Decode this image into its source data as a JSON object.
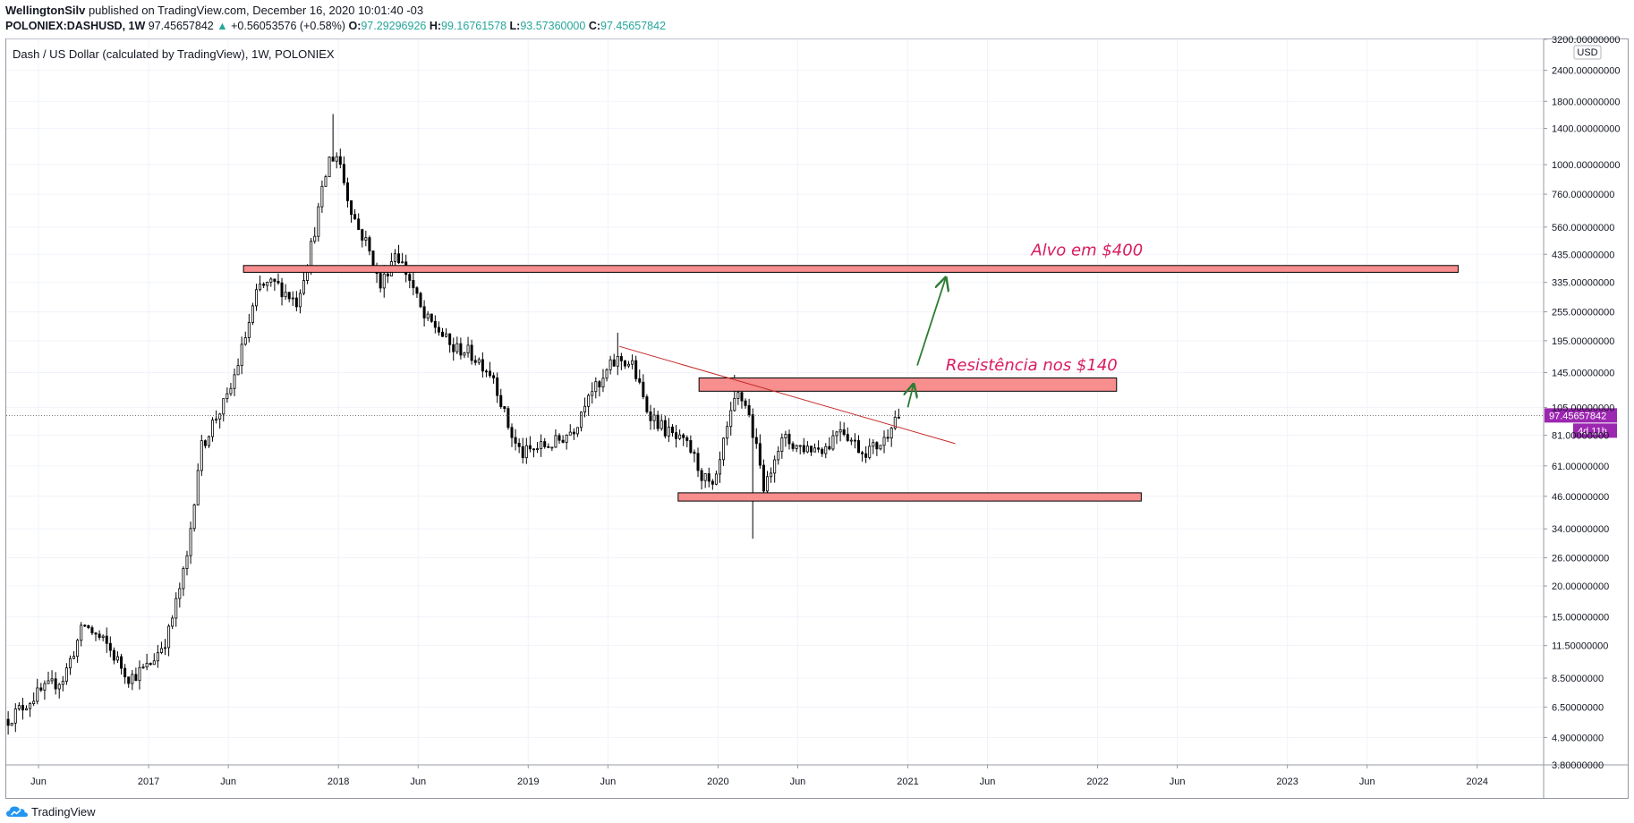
{
  "header": {
    "user": "WellingtonSilv",
    "published": "published on TradingView.com, December 16, 2020 10:01:40 -03",
    "symbol": "POLONIEX:DASHUSD, 1W",
    "last": "97.45657842",
    "change": "+0.56053576 (+0.58%)",
    "o_label": "O:",
    "o": "97.29296926",
    "h_label": "H:",
    "h": "99.16761578",
    "l_label": "L:",
    "l": "93.57360000",
    "c_label": "C:",
    "c": "97.45657842"
  },
  "legend_title": "Dash / US Dollar (calculated by TradingView), 1W, POLONIEX",
  "footer": {
    "brand": "TradingView"
  },
  "colors": {
    "up": "#26a69a",
    "candle": "#000000",
    "zone_fill": "#f88e8e",
    "annotation": "#d81b60",
    "arrow": "#2e7d32",
    "trendline": "#c62828",
    "price_badge": "#9c27b0"
  },
  "chart_data": {
    "type": "candlestick",
    "title": "Dash / US Dollar (calculated by TradingView), 1W, POLONIEX",
    "scale": "logarithmic",
    "y_range": [
      3.8,
      3200
    ],
    "x_range_years": [
      2016.25,
      2024.35
    ],
    "currency": "USD",
    "y_ticks": [
      "3200.00000000",
      "2400.00000000",
      "1800.00000000",
      "1400.00000000",
      "1000.00000000",
      "760.00000000",
      "560.00000000",
      "435.00000000",
      "335.00000000",
      "255.00000000",
      "195.00000000",
      "145.00000000",
      "105.00000000",
      "81.00000000",
      "61.00000000",
      "46.00000000",
      "34.00000000",
      "26.00000000",
      "20.00000000",
      "15.00000000",
      "11.50000000",
      "8.50000000",
      "6.50000000",
      "4.90000000",
      "3.80000000"
    ],
    "x_ticks": [
      {
        "label": "Jun",
        "t": 2016.42
      },
      {
        "label": "2017",
        "t": 2017.0
      },
      {
        "label": "Jun",
        "t": 2017.42
      },
      {
        "label": "2018",
        "t": 2018.0
      },
      {
        "label": "Jun",
        "t": 2018.42
      },
      {
        "label": "2019",
        "t": 2019.0
      },
      {
        "label": "Jun",
        "t": 2019.42
      },
      {
        "label": "2020",
        "t": 2020.0
      },
      {
        "label": "Jun",
        "t": 2020.42
      },
      {
        "label": "2021",
        "t": 2021.0
      },
      {
        "label": "Jun",
        "t": 2021.42
      },
      {
        "label": "2022",
        "t": 2022.0
      },
      {
        "label": "Jun",
        "t": 2022.42
      },
      {
        "label": "2023",
        "t": 2023.0
      },
      {
        "label": "Jun",
        "t": 2023.42
      },
      {
        "label": "2024",
        "t": 2024.0
      }
    ],
    "current_price": "97.45657842",
    "countdown": "4d 11h",
    "price_path": [
      [
        2016.26,
        5.8
      ],
      [
        2016.4,
        7.2
      ],
      [
        2016.55,
        8.5
      ],
      [
        2016.66,
        14.0
      ],
      [
        2016.78,
        11.5
      ],
      [
        2016.9,
        8.5
      ],
      [
        2017.0,
        9.5
      ],
      [
        2017.1,
        12.5
      ],
      [
        2017.2,
        25
      ],
      [
        2017.27,
        70
      ],
      [
        2017.35,
        95
      ],
      [
        2017.42,
        115
      ],
      [
        2017.5,
        190
      ],
      [
        2017.58,
        320
      ],
      [
        2017.67,
        330
      ],
      [
        2017.78,
        280
      ],
      [
        2017.86,
        480
      ],
      [
        2017.95,
        1050
      ],
      [
        2018.0,
        1100
      ],
      [
        2018.04,
        780
      ],
      [
        2018.1,
        560
      ],
      [
        2018.15,
        480
      ],
      [
        2018.22,
        320
      ],
      [
        2018.3,
        450
      ],
      [
        2018.38,
        340
      ],
      [
        2018.45,
        240
      ],
      [
        2018.52,
        220
      ],
      [
        2018.6,
        180
      ],
      [
        2018.66,
        180
      ],
      [
        2018.75,
        160
      ],
      [
        2018.82,
        140
      ],
      [
        2018.88,
        95
      ],
      [
        2018.93,
        75
      ],
      [
        2018.97,
        68
      ],
      [
        2019.05,
        72
      ],
      [
        2019.15,
        76
      ],
      [
        2019.25,
        88
      ],
      [
        2019.32,
        125
      ],
      [
        2019.38,
        125
      ],
      [
        2019.42,
        150
      ],
      [
        2019.48,
        165
      ],
      [
        2019.55,
        155
      ],
      [
        2019.62,
        105
      ],
      [
        2019.7,
        88
      ],
      [
        2019.78,
        78
      ],
      [
        2019.85,
        72
      ],
      [
        2019.92,
        55
      ],
      [
        2019.98,
        48
      ],
      [
        2020.03,
        75
      ],
      [
        2020.1,
        118
      ],
      [
        2020.15,
        108
      ],
      [
        2020.2,
        72
      ],
      [
        2020.25,
        48
      ],
      [
        2020.3,
        70
      ],
      [
        2020.35,
        78
      ],
      [
        2020.42,
        73
      ],
      [
        2020.5,
        72
      ],
      [
        2020.58,
        73
      ],
      [
        2020.64,
        90
      ],
      [
        2020.7,
        78
      ],
      [
        2020.76,
        70
      ],
      [
        2020.82,
        72
      ],
      [
        2020.88,
        78
      ],
      [
        2020.92,
        95
      ],
      [
        2020.96,
        97.46
      ]
    ],
    "extremes": [
      {
        "t": 2017.98,
        "high": 1600
      },
      {
        "t": 2020.19,
        "low": 31
      },
      {
        "t": 2020.08,
        "high": 142
      },
      {
        "t": 2019.48,
        "high": 210
      }
    ],
    "annotations": [
      {
        "kind": "zone",
        "from_t": 2017.5,
        "to_t": 2023.9,
        "low": 368,
        "high": 392,
        "label": ""
      },
      {
        "kind": "zone",
        "from_t": 2019.9,
        "to_t": 2022.1,
        "low": 122,
        "high": 138,
        "label": ""
      },
      {
        "kind": "zone",
        "from_t": 2019.79,
        "to_t": 2022.23,
        "low": 44,
        "high": 47.5,
        "label": ""
      },
      {
        "kind": "trendline",
        "from": [
          2019.48,
          185
        ],
        "to": [
          2021.25,
          75
        ]
      },
      {
        "kind": "arrow",
        "from": [
          2021.0,
          105
        ],
        "to": [
          2021.03,
          130
        ]
      },
      {
        "kind": "arrow",
        "from": [
          2021.05,
          155
        ],
        "to": [
          2021.2,
          350
        ]
      },
      {
        "kind": "text",
        "t": 2021.65,
        "price": 430,
        "text": "Alvo em $400"
      },
      {
        "kind": "text",
        "t": 2021.2,
        "price": 148,
        "text": "Resistência nos $140"
      }
    ]
  }
}
